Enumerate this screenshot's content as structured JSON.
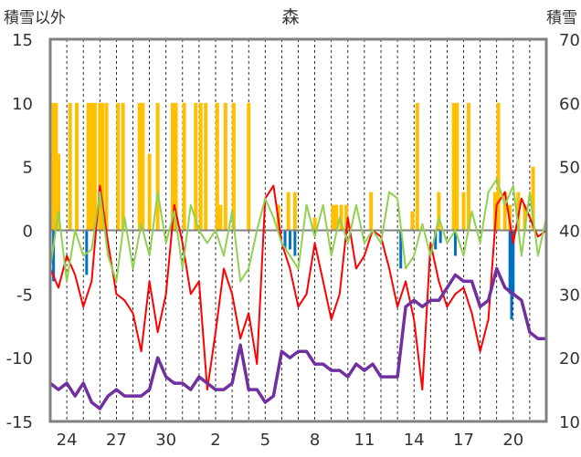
{
  "chart_data": {
    "type": "line",
    "title": "森",
    "ylabel_left": "積雪以外",
    "ylabel_right": "積雪",
    "ylim_left": [
      -15,
      15
    ],
    "ylim_right": [
      10,
      70
    ],
    "y_ticks_left": [
      "15",
      "10",
      "5",
      "0",
      "-5",
      "-10",
      "-15"
    ],
    "y_ticks_right": [
      "70",
      "60",
      "50",
      "40",
      "30",
      "20",
      "10"
    ],
    "x_tick_labels": [
      "24",
      "27",
      "30",
      "2",
      "5",
      "8",
      "11",
      "14",
      "17",
      "20"
    ],
    "x_range_days": 30,
    "grid": "vertical-dashed-daily",
    "colors": {
      "red": "#ff0000",
      "green": "#92d050",
      "purple": "#7030a0",
      "orange": "#ffc000",
      "blue": "#0070c0",
      "zero_line": "#808080",
      "frame": "#808080"
    },
    "series": [
      {
        "color": "red",
        "axis": "left",
        "x": [
          0,
          0.5,
          1,
          1.5,
          2,
          2.5,
          3,
          3.5,
          4,
          4.5,
          5,
          5.5,
          6,
          6.5,
          7,
          7.5,
          8,
          8.5,
          9,
          9.5,
          10,
          10.5,
          11,
          11.5,
          12,
          12.5,
          13,
          13.5,
          14,
          14.5,
          15,
          15.5,
          16,
          16.5,
          17,
          17.5,
          18,
          18.5,
          19,
          19.5,
          20,
          20.5,
          21,
          21.5,
          22,
          22.5,
          23,
          23.5,
          24,
          24.5,
          25,
          25.5,
          26,
          26.5,
          27,
          27.5,
          28,
          28.5,
          29,
          29.5,
          30
        ],
        "values": [
          -3,
          -4.5,
          -2,
          -3.5,
          -6,
          -4,
          3.5,
          -1,
          -5,
          -5.5,
          -6.5,
          -9.5,
          -4,
          -8,
          -5,
          2,
          -1,
          -5,
          -4,
          -12.5,
          -8,
          -3,
          -5,
          -8.5,
          -6.5,
          -10.5,
          2.5,
          3.5,
          -1,
          -3,
          -6,
          -5,
          -1,
          -4,
          -7,
          -5,
          1,
          -3,
          -2,
          0,
          -0.5,
          -3,
          -6,
          -4,
          -7,
          -12.5,
          -1,
          -4,
          -6,
          -5,
          -4.5,
          -6.5,
          -9.5,
          -7,
          2,
          3,
          -1,
          2.5,
          1,
          -0.5,
          0
        ]
      },
      {
        "color": "green",
        "axis": "left",
        "x": [
          0,
          0.5,
          1,
          1.5,
          2,
          2.5,
          3,
          3.5,
          4,
          4.5,
          5,
          5.5,
          6,
          6.5,
          7,
          7.5,
          8,
          8.5,
          9,
          9.5,
          10,
          10.5,
          11,
          11.5,
          12,
          12.5,
          13,
          13.5,
          14,
          14.5,
          15,
          15.5,
          16,
          16.5,
          17,
          17.5,
          18,
          18.5,
          19,
          19.5,
          20,
          20.5,
          21,
          21.5,
          22,
          22.5,
          23,
          23.5,
          24,
          24.5,
          25,
          25.5,
          26,
          26.5,
          27,
          27.5,
          28,
          28.5,
          29,
          29.5,
          30
        ],
        "values": [
          -3,
          1.5,
          -4,
          0,
          -2,
          -1.5,
          3,
          -2,
          -4,
          1,
          -3,
          0.5,
          -2,
          3,
          -1,
          1.5,
          -3,
          2,
          0,
          -1,
          0,
          -2,
          1.5,
          -4,
          -3,
          0,
          2.5,
          1,
          -1,
          -2,
          -3,
          2,
          -0.5,
          2,
          -2,
          1,
          -1,
          2,
          -1,
          0,
          -1,
          3,
          2.5,
          -3,
          -2,
          0.5,
          -2,
          1,
          -1,
          0,
          -2,
          1.5,
          -1,
          3,
          4,
          2,
          3.5,
          -2,
          3,
          -2,
          1
        ]
      }
    ],
    "snow_depth": {
      "color": "purple",
      "axis": "right",
      "x": [
        0,
        0.5,
        1,
        1.5,
        2,
        2.5,
        3,
        3.5,
        4,
        4.5,
        5,
        5.5,
        6,
        6.5,
        7,
        7.5,
        8,
        8.5,
        9,
        9.5,
        10,
        10.5,
        11,
        11.5,
        12,
        12.5,
        13,
        13.5,
        14,
        14.5,
        15,
        15.5,
        16,
        16.5,
        17,
        17.5,
        18,
        18.5,
        19,
        19.5,
        20,
        20.5,
        21,
        21.5,
        22,
        22.5,
        23,
        23.5,
        24,
        24.5,
        25,
        25.5,
        26,
        26.5,
        27,
        27.5,
        28,
        28.5,
        29,
        29.5,
        30
      ],
      "values": [
        16,
        15,
        16,
        14,
        16,
        13,
        12,
        14,
        15,
        14,
        14,
        14,
        15,
        20,
        17,
        16,
        16,
        15,
        17,
        16,
        15,
        15,
        16,
        22,
        15,
        15,
        13,
        14,
        21,
        20,
        21,
        21,
        19,
        19,
        18,
        18,
        17,
        19,
        18,
        19,
        17,
        17,
        17,
        28,
        29,
        28,
        29,
        29,
        31,
        33,
        32,
        32,
        28,
        29,
        34,
        31,
        30,
        29,
        24,
        23,
        23
      ]
    },
    "precip_bars": {
      "color": "orange",
      "axis": "left",
      "x": [
        0.2,
        0.35,
        0.5,
        1.2,
        1.6,
        2.3,
        2.5,
        2.7,
        3.0,
        3.15,
        3.4,
        4.1,
        4.4,
        5.4,
        5.6,
        6.0,
        6.5,
        7.4,
        7.6,
        8.1,
        8.8,
        9.1,
        9.4,
        10.1,
        10.3,
        10.6,
        11.1,
        12.0,
        13.8,
        14.4,
        14.8,
        16.0,
        17.1,
        17.3,
        17.6,
        17.9,
        19.4,
        21.9,
        22.2,
        23.5,
        24.4,
        24.6,
        25.0,
        25.3,
        26.9,
        27.1,
        27.5,
        27.8,
        28.3,
        28.7,
        29.2
      ],
      "values": [
        10,
        10,
        6,
        10,
        10,
        10,
        10,
        10,
        10,
        10,
        10,
        10,
        10,
        10,
        10,
        6,
        10,
        10,
        10,
        10,
        10,
        10,
        10,
        10,
        2,
        10,
        10,
        10,
        2,
        3,
        3,
        1,
        2,
        2,
        2,
        2,
        3,
        1.5,
        10,
        3,
        10,
        10,
        3,
        10,
        3,
        10,
        3,
        2,
        3,
        2,
        5
      ]
    },
    "neg_bars": {
      "color": "blue",
      "axis": "left",
      "x": [
        0.2,
        2.2,
        14.2,
        14.5,
        14.8,
        21.2,
        23.3,
        23.6,
        24.5,
        27.8,
        27.9,
        28.0
      ],
      "values": [
        -4,
        -3.5,
        -1.5,
        -1.5,
        -2,
        -3,
        -1.5,
        -1,
        -2,
        -5,
        -7,
        -5
      ]
    }
  }
}
